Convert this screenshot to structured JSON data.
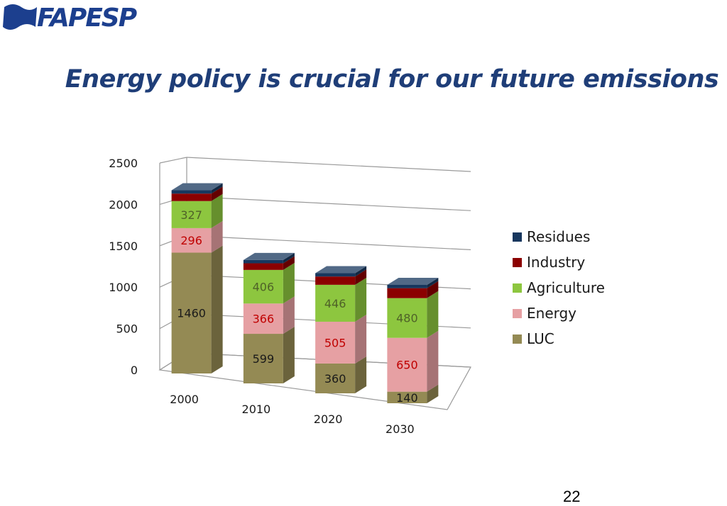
{
  "logo": {
    "text": "FAPESP",
    "icon": "flag-logo-icon",
    "color": "#1c3f8e"
  },
  "slide": {
    "title": "Energy policy is crucial for our future emissions",
    "page_number": "22"
  },
  "chart_data": {
    "type": "bar",
    "stacked": true,
    "style": "3d-columns",
    "categories": [
      "2000",
      "2010",
      "2020",
      "2030"
    ],
    "ylim": [
      0,
      2500
    ],
    "yticks": [
      0,
      500,
      1000,
      1500,
      2000,
      2500
    ],
    "grid": true,
    "legend_position": "right",
    "series": [
      {
        "name": "LUC",
        "color": "#948a54",
        "values": [
          1460,
          599,
          360,
          140
        ],
        "labels": [
          "1460",
          "599",
          "360",
          "140"
        ],
        "label_color": "#1a1a1a"
      },
      {
        "name": "Energy",
        "color": "#e6a0a3",
        "values": [
          296,
          366,
          505,
          650
        ],
        "labels": [
          "296",
          "366",
          "505",
          "650"
        ],
        "label_color": "#c00000"
      },
      {
        "name": "Agriculture",
        "color": "#8dc63f",
        "values": [
          327,
          406,
          446,
          480
        ],
        "labels": [
          "327",
          "406",
          "446",
          "480"
        ],
        "label_color": "#4f6228"
      },
      {
        "name": "Industry",
        "color": "#8b0000",
        "values": [
          90,
          80,
          100,
          120
        ],
        "labels": [
          "",
          "",
          "",
          ""
        ],
        "label_color": "#ffffff"
      },
      {
        "name": "Residues",
        "color": "#17375e",
        "values": [
          40,
          40,
          40,
          40
        ],
        "labels": [
          "",
          "",
          "",
          ""
        ],
        "label_color": "#ffffff"
      }
    ],
    "legend_order": [
      "Residues",
      "Industry",
      "Agriculture",
      "Energy",
      "LUC"
    ]
  }
}
